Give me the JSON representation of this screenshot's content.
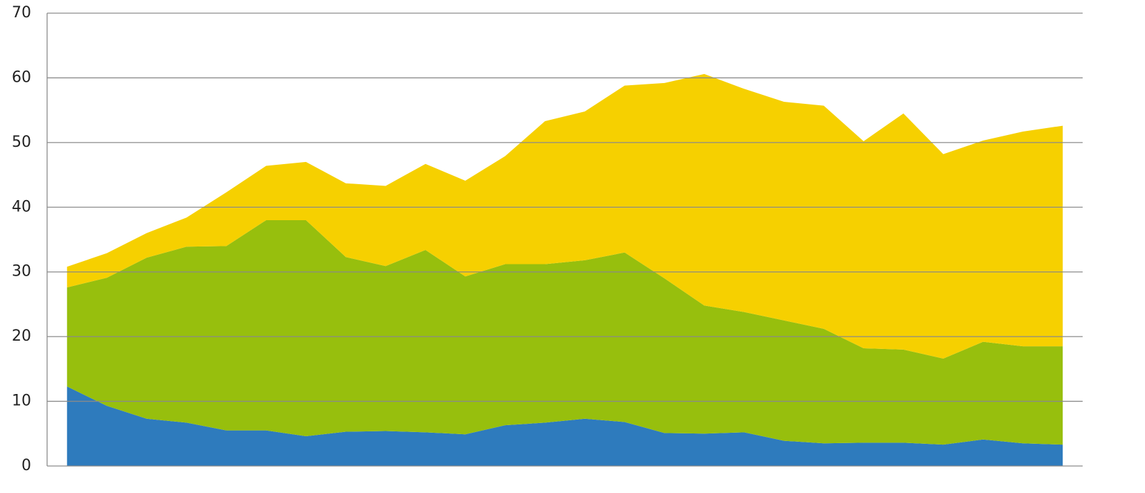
{
  "chart_data": {
    "type": "stacked_area",
    "categories": [
      null,
      null,
      null,
      null,
      null,
      null,
      null,
      null,
      null,
      null,
      null,
      null,
      null,
      null,
      null,
      null,
      null,
      null,
      null,
      null,
      null,
      null,
      null,
      null,
      null,
      null
    ],
    "series": [
      {
        "color": "#2e7bbd",
        "values": [
          12.3,
          9.3,
          7.3,
          6.7,
          5.5,
          5.5,
          4.6,
          5.3,
          5.4,
          5.2,
          4.9,
          6.3,
          6.7,
          7.3,
          6.8,
          5.1,
          5.0,
          5.2,
          3.9,
          3.5,
          3.6,
          3.6,
          3.3,
          4.1,
          3.5,
          3.3
        ]
      },
      {
        "color": "#97bf0d",
        "values": [
          15.3,
          19.8,
          24.9,
          27.2,
          28.5,
          32.5,
          33.4,
          27.0,
          25.5,
          28.2,
          24.4,
          24.9,
          24.5,
          24.5,
          26.2,
          23.9,
          19.8,
          18.6,
          18.6,
          17.7,
          14.6,
          14.4,
          13.3,
          15.1,
          15.0,
          15.2
        ]
      },
      {
        "color": "#f6d000",
        "values": [
          3.2,
          3.8,
          3.8,
          4.5,
          8.3,
          8.4,
          9.0,
          11.4,
          12.4,
          13.3,
          14.8,
          16.7,
          22.1,
          23.0,
          25.8,
          30.2,
          35.8,
          34.5,
          33.8,
          34.5,
          32.0,
          36.5,
          31.6,
          31.1,
          33.2,
          34.1
        ]
      }
    ],
    "ylim": [
      0,
      70
    ],
    "yticks": [
      0,
      10,
      20,
      30,
      40,
      50,
      60,
      70
    ],
    "grid": true
  }
}
